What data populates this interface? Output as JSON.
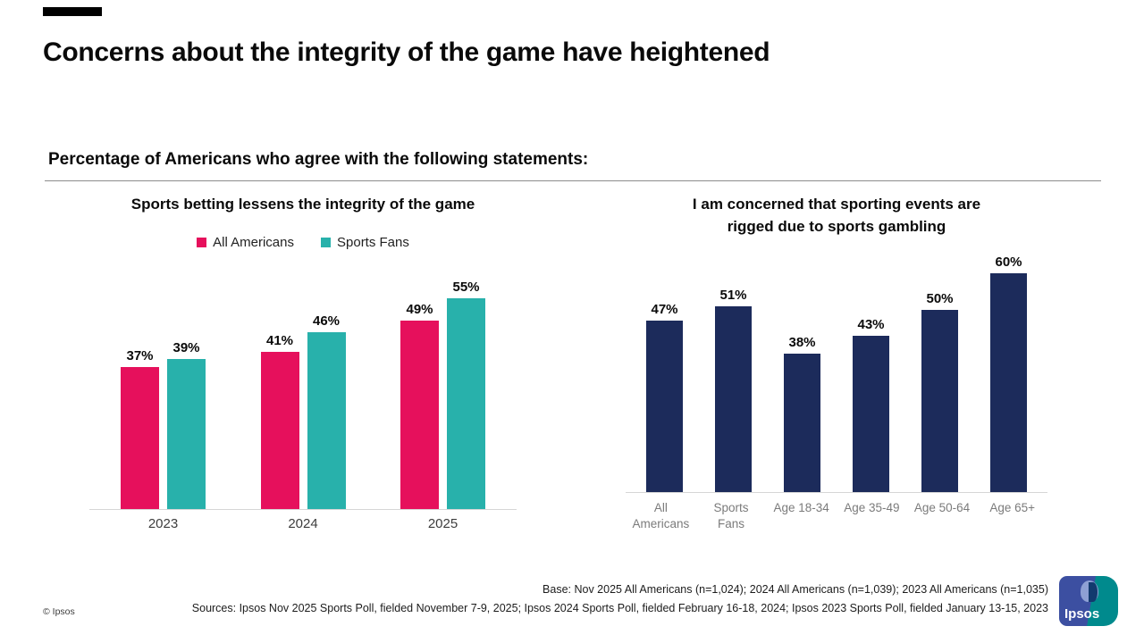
{
  "slide": {
    "title": "Concerns about the integrity of the game have heightened",
    "subtitle": "Percentage of Americans who agree with the following statements:",
    "copyright": "© Ipsos",
    "logo_text": "Ipsos"
  },
  "footnote": {
    "base": "Base: Nov 2025 All Americans (n=1,024); 2024 All Americans (n=1,039); 2023 All Americans (n=1,035)",
    "sources": "Sources: Ipsos Nov 2025 Sports Poll, fielded November 7-9, 2025; Ipsos 2024 Sports Poll, fielded February 16-18, 2024; Ipsos 2023 Sports Poll, fielded January 13-15, 2023"
  },
  "chart_data": [
    {
      "type": "bar",
      "title": "Sports betting lessens the integrity of the game",
      "categories": [
        "2023",
        "2024",
        "2025"
      ],
      "series": [
        {
          "name": "All Americans",
          "color": "#e6105c",
          "values": [
            37,
            41,
            49
          ]
        },
        {
          "name": "Sports Fans",
          "color": "#28b1ab",
          "values": [
            39,
            46,
            55
          ]
        }
      ],
      "value_suffix": "%",
      "legend_position": "top",
      "ylim": [
        0,
        60
      ],
      "grid": false
    },
    {
      "type": "bar",
      "title": "I am concerned that sporting events are rigged due to sports gambling",
      "title_lines": [
        "I am concerned that sporting events are",
        "rigged due to sports gambling"
      ],
      "categories": [
        "All Americans",
        "Sports Fans",
        "Age 18-34",
        "Age 35-49",
        "Age 50-64",
        "Age 65+"
      ],
      "values": [
        47,
        51,
        38,
        43,
        50,
        60
      ],
      "bar_color": "#1c2b5b",
      "value_suffix": "%",
      "ylim": [
        0,
        65
      ],
      "grid": false
    }
  ]
}
